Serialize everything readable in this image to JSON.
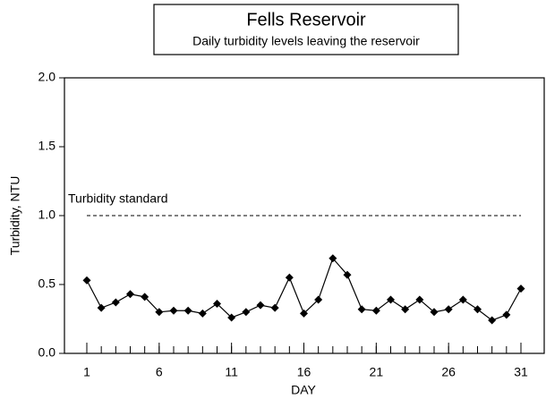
{
  "chart_data": {
    "type": "line",
    "title": "Fells Reservoir",
    "subtitle": "Daily turbidity levels leaving the reservoir",
    "x_label": "DAY",
    "y_label": "Turbidity, NTU",
    "x": [
      1,
      2,
      3,
      4,
      5,
      6,
      7,
      8,
      9,
      10,
      11,
      12,
      13,
      14,
      15,
      16,
      17,
      18,
      19,
      20,
      21,
      22,
      23,
      24,
      25,
      26,
      27,
      28,
      29,
      30,
      31
    ],
    "series": [
      {
        "name": "Turbidity",
        "color": "#000000",
        "values": [
          0.53,
          0.33,
          0.37,
          0.43,
          0.41,
          0.3,
          0.31,
          0.31,
          0.29,
          0.36,
          0.26,
          0.3,
          0.35,
          0.33,
          0.55,
          0.29,
          0.39,
          0.69,
          0.57,
          0.32,
          0.31,
          0.39,
          0.32,
          0.39,
          0.3,
          0.32,
          0.39,
          0.32,
          0.24,
          0.28,
          0.47
        ]
      }
    ],
    "reference_line": {
      "value": 1.0,
      "label": "Turbidity standard"
    },
    "xlim": [
      1,
      31
    ],
    "xticks": [
      1,
      6,
      11,
      16,
      21,
      26,
      31
    ],
    "ylim": [
      0,
      2.0
    ],
    "yticks": [
      {
        "value": 0,
        "label": "0.0"
      },
      {
        "value": 0.5,
        "label": "0.5"
      },
      {
        "value": 1.0,
        "label": "1.0"
      },
      {
        "value": 1.5,
        "label": "1.5"
      },
      {
        "value": 2.0,
        "label": "2.0"
      }
    ]
  }
}
